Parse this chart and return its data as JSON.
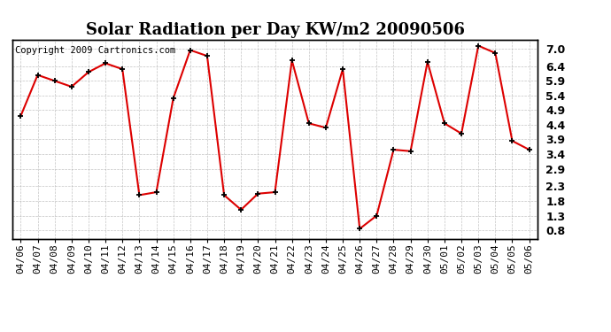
{
  "title": "Solar Radiation per Day KW/m2 20090506",
  "copyright": "Copyright 2009 Cartronics.com",
  "dates": [
    "04/06",
    "04/07",
    "04/08",
    "04/09",
    "04/10",
    "04/11",
    "04/12",
    "04/13",
    "04/14",
    "04/15",
    "04/16",
    "04/17",
    "04/18",
    "04/19",
    "04/20",
    "04/21",
    "04/22",
    "04/23",
    "04/24",
    "04/25",
    "04/26",
    "04/27",
    "04/28",
    "04/29",
    "04/30",
    "05/01",
    "05/02",
    "05/03",
    "05/04",
    "05/05",
    "05/06"
  ],
  "values": [
    4.7,
    6.1,
    5.9,
    5.7,
    6.2,
    6.5,
    6.3,
    2.0,
    2.1,
    5.3,
    6.95,
    6.75,
    2.0,
    1.5,
    2.05,
    2.1,
    6.6,
    4.45,
    4.3,
    6.3,
    0.85,
    1.3,
    3.55,
    3.5,
    6.55,
    4.45,
    4.1,
    7.1,
    6.85,
    3.85,
    3.55
  ],
  "line_color": "#dd0000",
  "marker": "+",
  "marker_color": "#000000",
  "bg_color": "#ffffff",
  "grid_color": "#aaaaaa",
  "ylim": [
    0.5,
    7.3
  ],
  "yticks": [
    0.8,
    1.3,
    1.8,
    2.3,
    2.9,
    3.4,
    3.9,
    4.4,
    4.9,
    5.4,
    5.9,
    6.4,
    7.0
  ],
  "ytick_labels": [
    "0.8",
    "1.3",
    "1.8",
    "2.3",
    "2.9",
    "3.4",
    "3.9",
    "4.4",
    "4.9",
    "5.4",
    "5.9",
    "6.4",
    "7.0"
  ],
  "title_fontsize": 13,
  "copyright_fontsize": 7.5,
  "tick_fontsize": 8,
  "ytick_fontsize": 9,
  "border_color": "#000000"
}
